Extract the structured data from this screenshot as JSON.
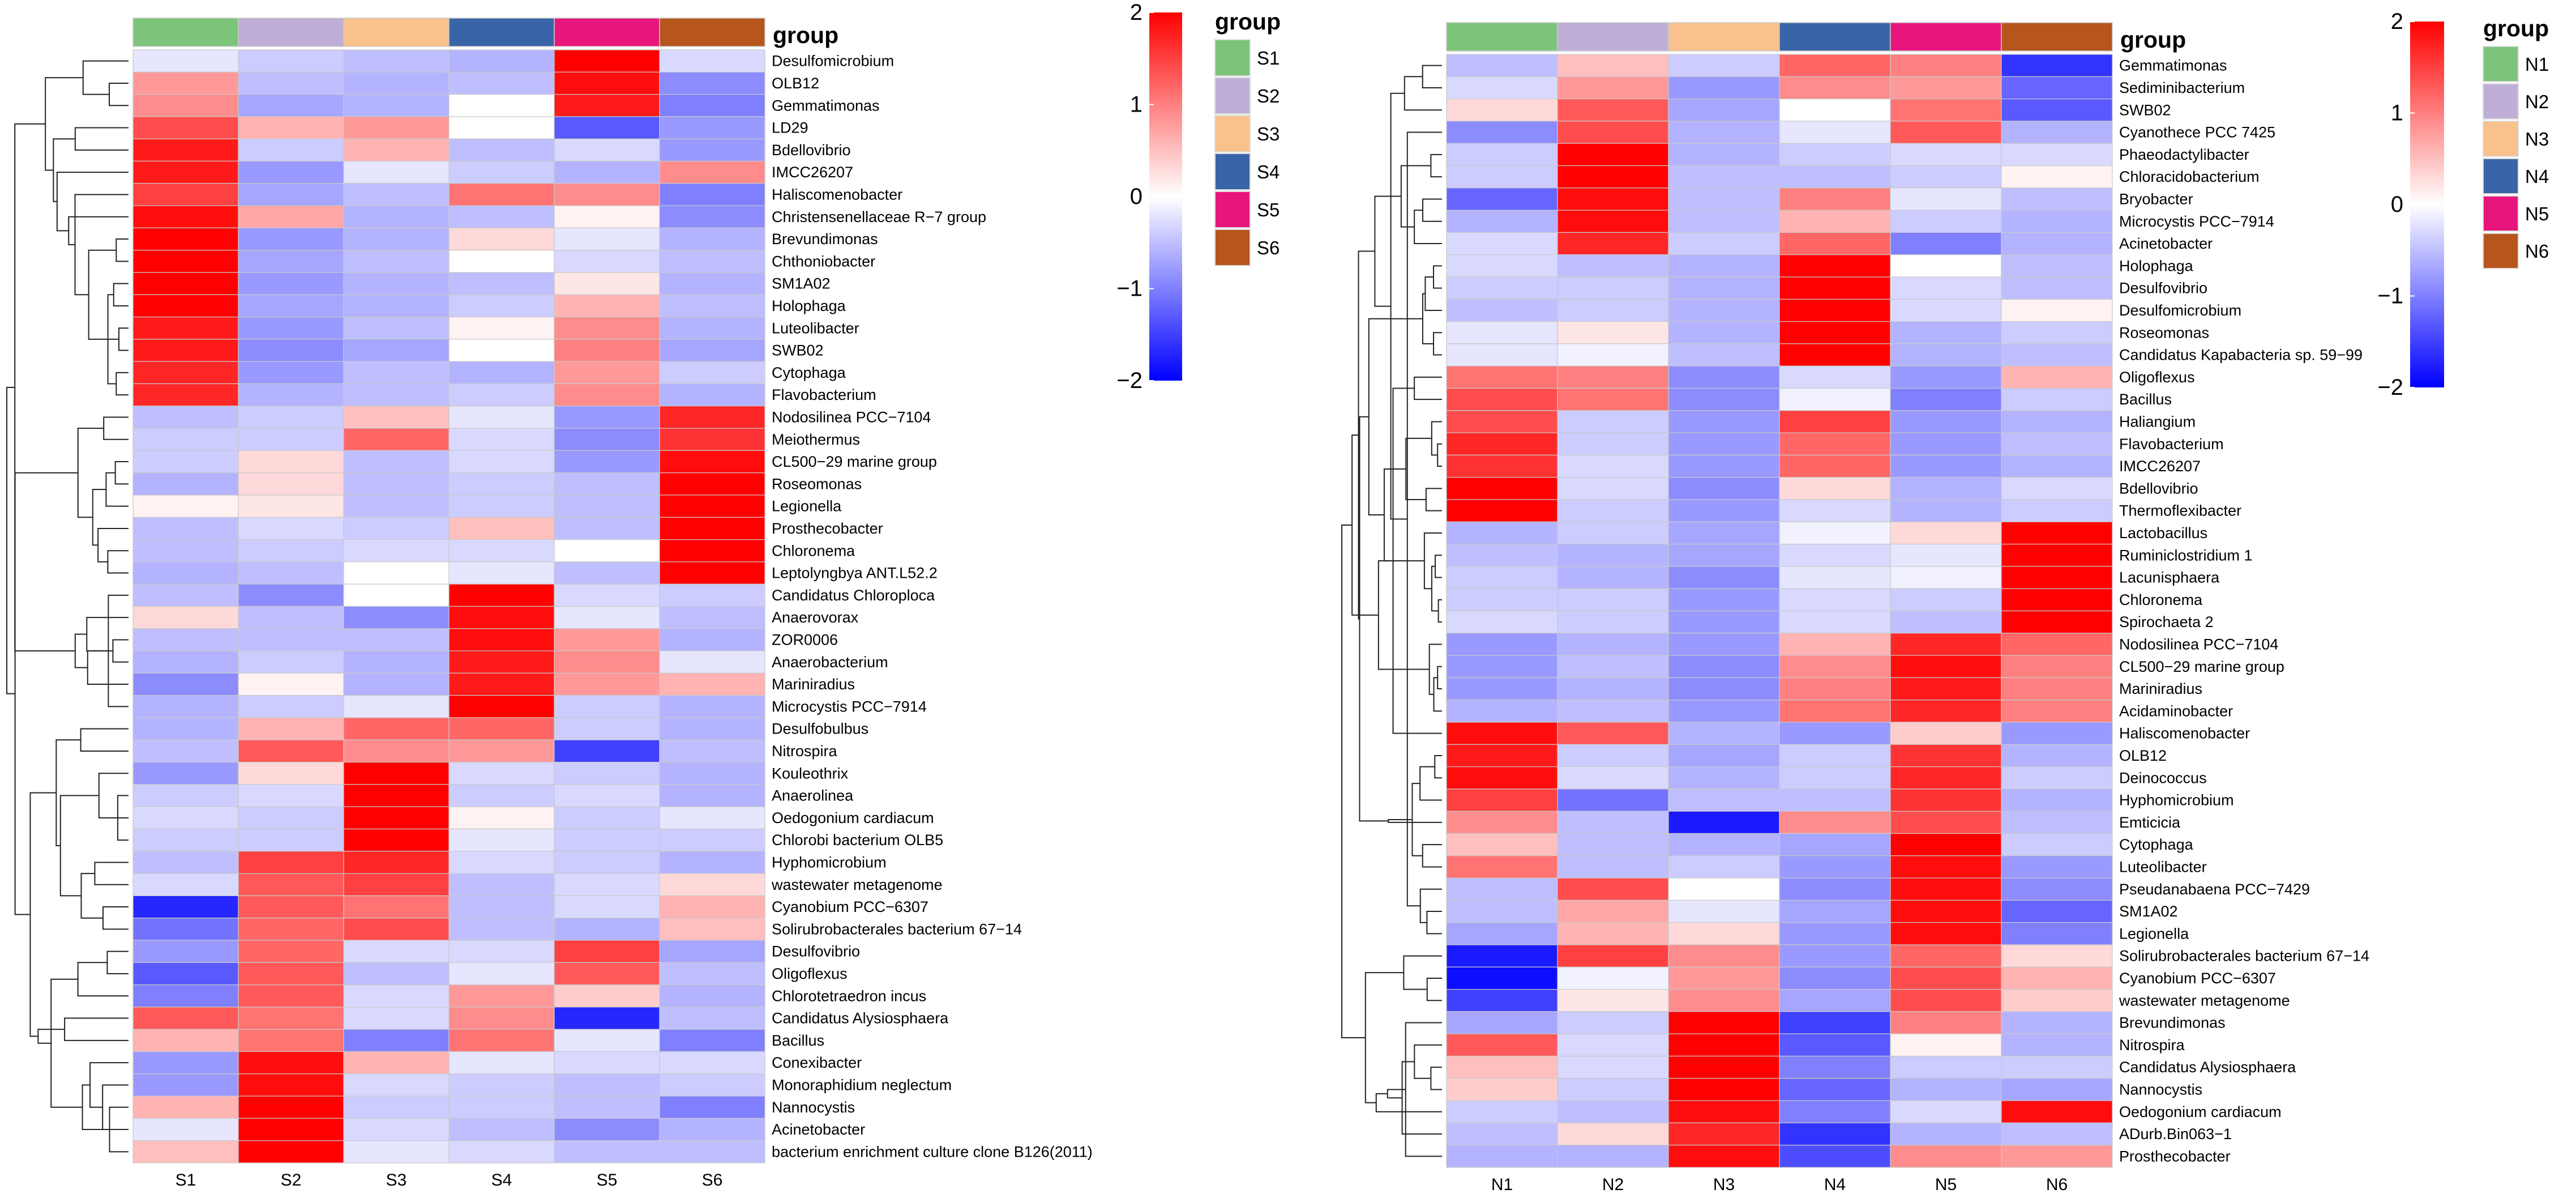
{
  "colors": {
    "high": "#ff0000",
    "mid": "#ffffff",
    "low": "#0000ff",
    "cell_border": "#c9c9c9",
    "group_palette": [
      "#7cc47a",
      "#bfaed6",
      "#f9c18c",
      "#3a64a8",
      "#e8157d",
      "#b6561c"
    ]
  },
  "chart_data": [
    {
      "type": "heatmap",
      "panel": "left",
      "group_title": "group",
      "columns": [
        "S1",
        "S2",
        "S3",
        "S4",
        "S5",
        "S6"
      ],
      "legend_groups": [
        "S1",
        "S2",
        "S3",
        "S4",
        "S5",
        "S6"
      ],
      "colorbar": {
        "min": -2,
        "max": 2,
        "ticks": [
          2,
          1,
          0,
          -1,
          -2
        ],
        "tick_labels": [
          "2",
          "1",
          "0",
          "−1",
          "−2"
        ]
      },
      "rows": [
        "Desulfomicrobium",
        "OLB12",
        "Gemmatimonas",
        "LD29",
        "Bdellovibrio",
        "IMCC26207",
        "Haliscomenobacter",
        "Christensenellaceae R−7 group",
        "Brevundimonas",
        "Chthoniobacter",
        "SM1A02",
        "Holophaga",
        "Luteolibacter",
        "SWB02",
        "Cytophaga",
        "Flavobacterium",
        "Nodosilinea PCC−7104",
        "Meiothermus",
        "CL500−29 marine group",
        "Roseomonas",
        "Legionella",
        "Prosthecobacter",
        "Chloronema",
        "Leptolyngbya ANT.L52.2",
        "Candidatus Chloroploca",
        "Anaerovorax",
        "ZOR0006",
        "Anaerobacterium",
        "Mariniradius",
        "Microcystis PCC−7914",
        "Desulfobulbus",
        "Nitrospira",
        "Kouleothrix",
        "Anaerolinea",
        "Oedogonium cardiacum",
        "Chlorobi bacterium OLB5",
        "Hyphomicrobium",
        "wastewater metagenome",
        "Cyanobium PCC−6307",
        "Solirubrobacterales bacterium 67−14",
        "Desulfovibrio",
        "Oligoflexus",
        "Chlorotetraedron incus",
        "Candidatus Alysiosphaera",
        "Bacillus",
        "Conexibacter",
        "Monoraphidium neglectum",
        "Nannocystis",
        "Acinetobacter",
        "bacterium enrichment culture clone B126(2011)"
      ],
      "values": [
        [
          -0.2,
          -0.4,
          -0.5,
          -0.6,
          2.0,
          -0.3
        ],
        [
          0.8,
          -0.5,
          -0.6,
          -0.5,
          1.9,
          -0.9
        ],
        [
          0.9,
          -0.7,
          -0.6,
          0.0,
          1.8,
          -1.0
        ],
        [
          1.4,
          0.6,
          0.8,
          0.0,
          -1.3,
          -0.8
        ],
        [
          1.8,
          -0.4,
          0.6,
          -0.5,
          -0.3,
          -0.8
        ],
        [
          1.8,
          -0.8,
          -0.2,
          -0.4,
          -0.6,
          0.9
        ],
        [
          1.5,
          -0.7,
          -0.5,
          1.1,
          0.9,
          -1.0
        ],
        [
          1.9,
          0.7,
          -0.6,
          -0.5,
          0.1,
          -0.9
        ],
        [
          2.0,
          -0.8,
          -0.6,
          0.3,
          -0.2,
          -0.6
        ],
        [
          2.0,
          -0.7,
          -0.5,
          0.0,
          -0.3,
          -0.5
        ],
        [
          2.0,
          -0.8,
          -0.6,
          -0.5,
          0.2,
          -0.6
        ],
        [
          2.0,
          -0.7,
          -0.6,
          -0.4,
          0.6,
          -0.5
        ],
        [
          1.8,
          -0.8,
          -0.5,
          0.1,
          0.9,
          -0.6
        ],
        [
          1.8,
          -0.9,
          -0.7,
          0.0,
          1.0,
          -0.7
        ],
        [
          1.7,
          -0.8,
          -0.5,
          -0.6,
          0.8,
          -0.4
        ],
        [
          1.7,
          -0.6,
          -0.5,
          -0.4,
          0.9,
          -0.6
        ],
        [
          -0.5,
          -0.4,
          0.5,
          -0.2,
          -0.8,
          1.7
        ],
        [
          -0.4,
          -0.4,
          1.2,
          -0.3,
          -0.9,
          1.6
        ],
        [
          -0.4,
          0.3,
          -0.5,
          -0.3,
          -0.8,
          1.9
        ],
        [
          -0.6,
          0.3,
          -0.5,
          -0.4,
          -0.5,
          2.0
        ],
        [
          0.1,
          0.2,
          -0.5,
          -0.4,
          -0.5,
          2.0
        ],
        [
          -0.5,
          -0.3,
          -0.4,
          0.5,
          -0.5,
          2.0
        ],
        [
          -0.5,
          -0.4,
          -0.3,
          -0.3,
          0.0,
          2.0
        ],
        [
          -0.6,
          -0.5,
          0.0,
          -0.2,
          -0.5,
          2.0
        ],
        [
          -0.5,
          -0.9,
          0.0,
          2.0,
          -0.3,
          -0.4
        ],
        [
          0.3,
          -0.5,
          -0.9,
          1.9,
          -0.2,
          -0.5
        ],
        [
          -0.5,
          -0.5,
          -0.5,
          1.9,
          0.8,
          -0.6
        ],
        [
          -0.6,
          -0.4,
          -0.6,
          1.8,
          0.9,
          -0.2
        ],
        [
          -0.9,
          0.1,
          -0.6,
          1.8,
          0.8,
          0.6
        ],
        [
          -0.6,
          -0.4,
          -0.2,
          2.0,
          -0.4,
          -0.6
        ],
        [
          -0.6,
          0.6,
          1.2,
          1.2,
          -0.4,
          -0.6
        ],
        [
          -0.5,
          1.3,
          0.9,
          0.8,
          -1.5,
          -0.5
        ],
        [
          -0.8,
          0.3,
          2.0,
          -0.3,
          -0.4,
          -0.6
        ],
        [
          -0.4,
          -0.3,
          2.0,
          -0.4,
          -0.3,
          -0.6
        ],
        [
          -0.3,
          -0.4,
          2.0,
          0.1,
          -0.4,
          -0.2
        ],
        [
          -0.4,
          -0.4,
          2.0,
          -0.2,
          -0.4,
          -0.4
        ],
        [
          -0.5,
          1.5,
          1.7,
          -0.3,
          -0.4,
          -0.6
        ],
        [
          -0.3,
          1.3,
          1.5,
          -0.5,
          -0.3,
          0.3
        ],
        [
          -1.7,
          1.3,
          1.1,
          -0.5,
          -0.3,
          0.6
        ],
        [
          -1.1,
          1.2,
          1.4,
          -0.5,
          -0.6,
          0.5
        ],
        [
          -0.8,
          1.2,
          -0.3,
          -0.3,
          1.5,
          -0.7
        ],
        [
          -1.3,
          1.3,
          -0.5,
          -0.2,
          1.3,
          -0.5
        ],
        [
          -1.0,
          1.3,
          -0.3,
          0.8,
          0.4,
          -0.6
        ],
        [
          1.3,
          1.1,
          -0.3,
          0.9,
          -1.7,
          -0.5
        ],
        [
          0.6,
          1.1,
          -1.0,
          1.1,
          -0.2,
          -1.0
        ],
        [
          -0.8,
          1.9,
          0.6,
          -0.2,
          -0.3,
          -0.3
        ],
        [
          -0.8,
          1.9,
          -0.3,
          -0.4,
          -0.5,
          -0.4
        ],
        [
          0.6,
          2.0,
          -0.4,
          -0.4,
          -0.5,
          -1.0
        ],
        [
          -0.2,
          2.0,
          -0.3,
          -0.5,
          -0.9,
          -0.6
        ],
        [
          0.5,
          2.0,
          -0.2,
          -0.3,
          -0.5,
          -0.5
        ]
      ]
    },
    {
      "type": "heatmap",
      "panel": "right",
      "group_title": "group",
      "columns": [
        "N1",
        "N2",
        "N3",
        "N4",
        "N5",
        "N6"
      ],
      "legend_groups": [
        "N1",
        "N2",
        "N3",
        "N4",
        "N5",
        "N6"
      ],
      "colorbar": {
        "min": -2,
        "max": 2,
        "ticks": [
          2,
          1,
          0,
          -1,
          -2
        ],
        "tick_labels": [
          "2",
          "1",
          "0",
          "−1",
          "−2"
        ]
      },
      "rows": [
        "Gemmatimonas",
        "Sediminibacterium",
        "SWB02",
        "Cyanothece PCC 7425",
        "Phaeodactylibacter",
        "Chloracidobacterium",
        "Bryobacter",
        "Microcystis PCC−7914",
        "Acinetobacter",
        "Holophaga",
        "Desulfovibrio",
        "Desulfomicrobium",
        "Roseomonas",
        "Candidatus Kapabacteria sp. 59−99",
        "Oligoflexus",
        "Bacillus",
        "Haliangium",
        "Flavobacterium",
        "IMCC26207",
        "Bdellovibrio",
        "Thermoflexibacter",
        "Lactobacillus",
        "Ruminiclostridium 1",
        "Lacunisphaera",
        "Chloronema",
        "Spirochaeta 2",
        "Nodosilinea PCC−7104",
        "CL500−29 marine group",
        "Mariniradius",
        "Acidaminobacter",
        "Haliscomenobacter",
        "OLB12",
        "Deinococcus",
        "Hyphomicrobium",
        "Emticicia",
        "Cytophaga",
        "Luteolibacter",
        "Pseudanabaena PCC−7429",
        "SM1A02",
        "Legionella",
        "Solirubrobacterales bacterium 67−14",
        "Cyanobium PCC−6307",
        "wastewater metagenome",
        "Brevundimonas",
        "Nitrospira",
        "Candidatus Alysiosphaera",
        "Nannocystis",
        "Oedogonium cardiacum",
        "ADurb.Bin063−1",
        "Prosthecobacter"
      ],
      "values": [
        [
          -0.5,
          0.5,
          -0.4,
          1.2,
          1.0,
          -1.6
        ],
        [
          -0.3,
          0.8,
          -0.8,
          0.9,
          0.8,
          -1.2
        ],
        [
          0.3,
          1.3,
          -0.7,
          0.0,
          1.1,
          -1.3
        ],
        [
          -0.9,
          1.4,
          -0.6,
          -0.2,
          1.3,
          -0.6
        ],
        [
          -0.4,
          2.0,
          -0.6,
          -0.4,
          -0.3,
          -0.3
        ],
        [
          -0.4,
          2.0,
          -0.5,
          -0.5,
          -0.4,
          0.1
        ],
        [
          -1.2,
          1.9,
          -0.5,
          1.0,
          -0.2,
          -0.5
        ],
        [
          -0.6,
          1.9,
          -0.5,
          0.6,
          -0.4,
          -0.6
        ],
        [
          -0.3,
          1.7,
          -0.4,
          1.2,
          -1.0,
          -0.6
        ],
        [
          -0.3,
          -0.5,
          -0.6,
          2.0,
          0.0,
          -0.5
        ],
        [
          -0.4,
          -0.4,
          -0.6,
          2.0,
          -0.3,
          -0.5
        ],
        [
          -0.5,
          -0.4,
          -0.6,
          2.0,
          -0.3,
          0.1
        ],
        [
          -0.2,
          0.2,
          -0.6,
          2.0,
          -0.6,
          -0.4
        ],
        [
          -0.2,
          -0.1,
          -0.5,
          2.0,
          -0.6,
          -0.5
        ],
        [
          1.1,
          1.0,
          -0.9,
          -0.3,
          -0.8,
          0.6
        ],
        [
          1.4,
          1.1,
          -0.9,
          -0.1,
          -1.0,
          -0.4
        ],
        [
          1.4,
          -0.4,
          -0.8,
          1.5,
          -0.8,
          -0.6
        ],
        [
          1.7,
          -0.4,
          -0.8,
          1.2,
          -0.8,
          -0.5
        ],
        [
          1.6,
          -0.3,
          -0.8,
          1.2,
          -0.8,
          -0.6
        ],
        [
          2.0,
          -0.3,
          -0.9,
          0.3,
          -0.6,
          -0.3
        ],
        [
          2.0,
          -0.4,
          -0.8,
          -0.3,
          -0.6,
          -0.4
        ],
        [
          -0.6,
          -0.4,
          -0.7,
          -0.1,
          0.3,
          2.0
        ],
        [
          -0.5,
          -0.6,
          -0.7,
          -0.3,
          -0.2,
          2.0
        ],
        [
          -0.4,
          -0.6,
          -0.9,
          -0.2,
          -0.1,
          2.0
        ],
        [
          -0.4,
          -0.4,
          -0.8,
          -0.3,
          -0.4,
          2.0
        ],
        [
          -0.3,
          -0.4,
          -0.8,
          -0.3,
          -0.5,
          2.0
        ],
        [
          -0.8,
          -0.6,
          -0.8,
          0.6,
          1.7,
          1.2
        ],
        [
          -0.8,
          -0.5,
          -0.9,
          0.9,
          1.9,
          1.0
        ],
        [
          -0.8,
          -0.6,
          -0.9,
          1.0,
          1.8,
          1.0
        ],
        [
          -0.6,
          -0.5,
          -0.8,
          1.1,
          1.7,
          1.0
        ],
        [
          1.9,
          1.3,
          -0.6,
          -0.8,
          0.4,
          -0.8
        ],
        [
          1.8,
          -0.4,
          -0.7,
          -0.4,
          1.6,
          -0.6
        ],
        [
          1.9,
          -0.3,
          -0.6,
          -0.4,
          1.7,
          -0.4
        ],
        [
          1.5,
          -1.1,
          -0.5,
          -0.5,
          1.6,
          -0.6
        ],
        [
          0.9,
          -0.5,
          -1.8,
          0.9,
          1.4,
          -0.5
        ],
        [
          0.5,
          -0.5,
          -0.6,
          -0.7,
          2.0,
          -0.4
        ],
        [
          1.1,
          -0.5,
          -0.4,
          -0.8,
          1.9,
          -0.8
        ],
        [
          -0.5,
          1.4,
          0.0,
          -0.9,
          1.9,
          -0.9
        ],
        [
          -0.5,
          0.7,
          -0.2,
          -0.7,
          1.9,
          -1.2
        ],
        [
          -0.7,
          0.6,
          0.3,
          -0.8,
          1.9,
          -1.0
        ],
        [
          -1.8,
          1.5,
          0.9,
          -0.8,
          1.2,
          0.3
        ],
        [
          -1.9,
          -0.1,
          0.8,
          -0.9,
          1.4,
          0.6
        ],
        [
          -1.5,
          0.2,
          0.9,
          -0.7,
          1.4,
          0.4
        ],
        [
          -0.7,
          -0.4,
          2.0,
          -1.5,
          1.0,
          -0.6
        ],
        [
          1.3,
          -0.3,
          2.0,
          -1.3,
          0.1,
          -0.6
        ],
        [
          0.5,
          -0.3,
          2.0,
          -1.0,
          -0.4,
          -0.4
        ],
        [
          0.4,
          -0.4,
          2.0,
          -1.2,
          -0.6,
          -0.7
        ],
        [
          -0.4,
          -0.5,
          1.9,
          -1.0,
          -0.3,
          1.9
        ],
        [
          -0.5,
          0.3,
          1.7,
          -1.6,
          -0.6,
          -0.5
        ],
        [
          -0.6,
          -0.6,
          1.9,
          -1.4,
          0.9,
          0.8
        ]
      ]
    }
  ]
}
